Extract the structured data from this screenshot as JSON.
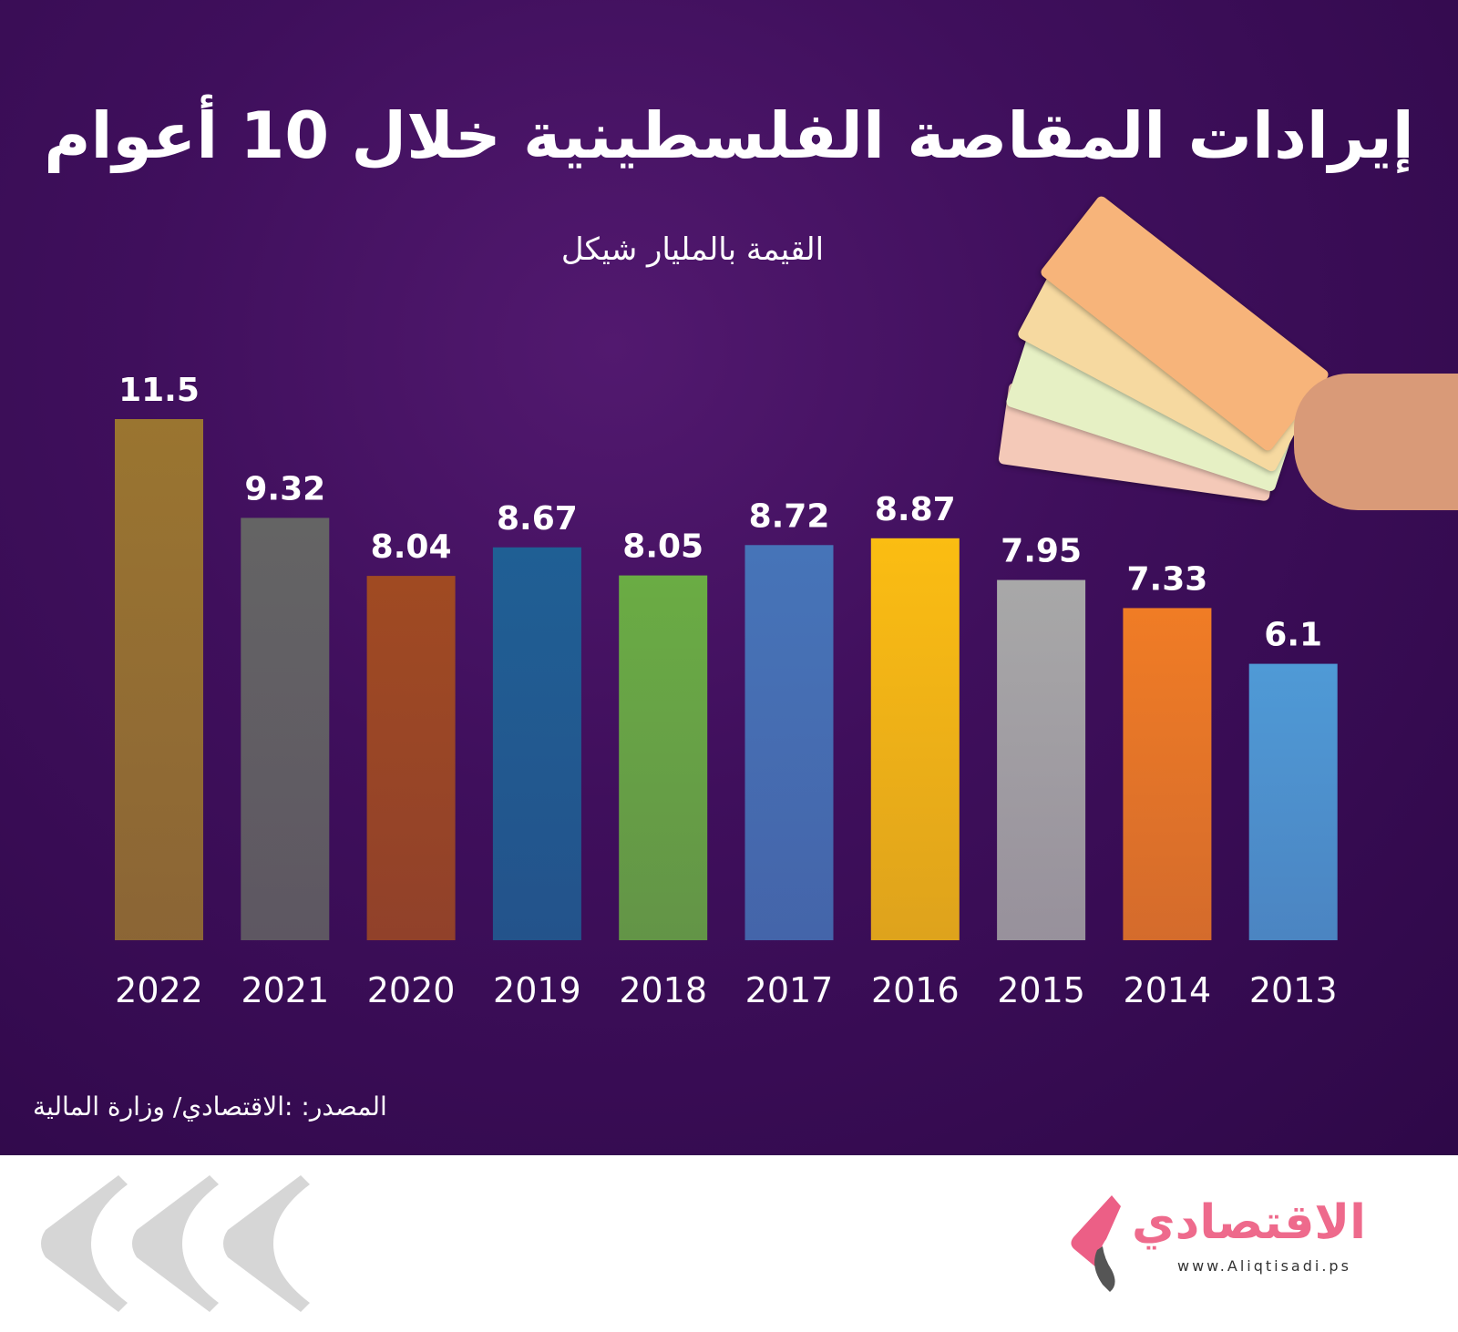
{
  "chart_data": {
    "type": "bar",
    "title": "إيرادات المقاصة الفلسطينية خلال 10 أعوام",
    "subtitle": "القيمة بالمليار شيكل",
    "categories": [
      "2022",
      "2021",
      "2020",
      "2019",
      "2018",
      "2017",
      "2016",
      "2015",
      "2014",
      "2013"
    ],
    "values": [
      11.5,
      9.32,
      8.04,
      8.67,
      8.05,
      8.72,
      8.87,
      7.95,
      7.33,
      6.1
    ],
    "data_labels": [
      "11.5",
      "9.32",
      "8.04",
      "8.67",
      "8.05",
      "8.72",
      "8.87",
      "7.95",
      "7.33",
      "6.1"
    ],
    "colors": [
      "#9a7530",
      "#646464",
      "#a04a22",
      "#1f5f94",
      "#6aac44",
      "#4674b8",
      "#fbbd12",
      "#a8a8a8",
      "#f07c25",
      "#4f9ad6"
    ],
    "ylim": [
      0,
      11.5
    ],
    "grid": false,
    "xlabel": "",
    "ylabel": ""
  },
  "source": "المصدر: :الاقتصادي/ وزارة المالية",
  "logo": {
    "text": "الاقتصادي",
    "url": "www.Aliqtisadi.ps",
    "color": "#ee6a8c"
  },
  "background_color": "#3f0f5c"
}
